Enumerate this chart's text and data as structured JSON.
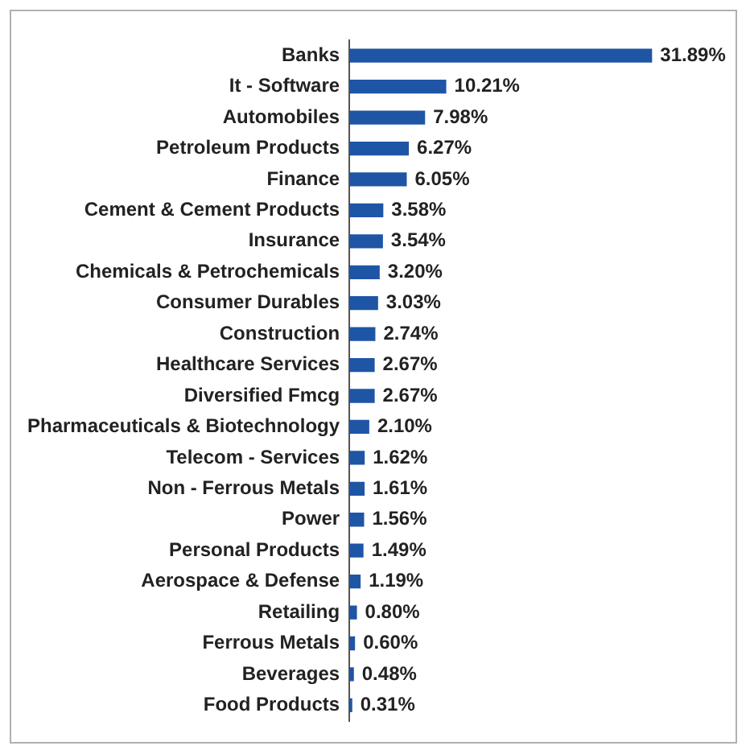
{
  "chart_data": {
    "type": "bar",
    "orientation": "horizontal",
    "tick_labels": "y",
    "grid": false,
    "legend": false,
    "color": "#1f55a5",
    "categories": [
      "Banks",
      "It - Software",
      "Automobiles",
      "Petroleum Products",
      "Finance",
      "Cement & Cement Products",
      "Insurance",
      "Chemicals & Petrochemicals",
      "Consumer Durables",
      "Construction",
      "Healthcare Services",
      "Diversified Fmcg",
      "Pharmaceuticals & Biotechnology",
      "Telecom - Services",
      "Non - Ferrous Metals",
      "Power",
      "Personal Products",
      "Aerospace & Defense",
      "Retailing",
      "Ferrous Metals",
      "Beverages",
      "Food Products"
    ],
    "values": [
      31.89,
      10.21,
      7.98,
      6.27,
      6.05,
      3.58,
      3.54,
      3.2,
      3.03,
      2.74,
      2.67,
      2.67,
      2.1,
      1.62,
      1.61,
      1.56,
      1.49,
      1.19,
      0.8,
      0.6,
      0.48,
      0.31
    ],
    "value_labels": [
      "31.89%",
      "10.21%",
      "7.98%",
      "6.27%",
      "6.05%",
      "3.58%",
      "3.54%",
      "3.20%",
      "3.03%",
      "2.74%",
      "2.67%",
      "2.67%",
      "2.10%",
      "1.62%",
      "1.61%",
      "1.56%",
      "1.49%",
      "1.19%",
      "0.80%",
      "0.60%",
      "0.48%",
      "0.31%"
    ]
  }
}
